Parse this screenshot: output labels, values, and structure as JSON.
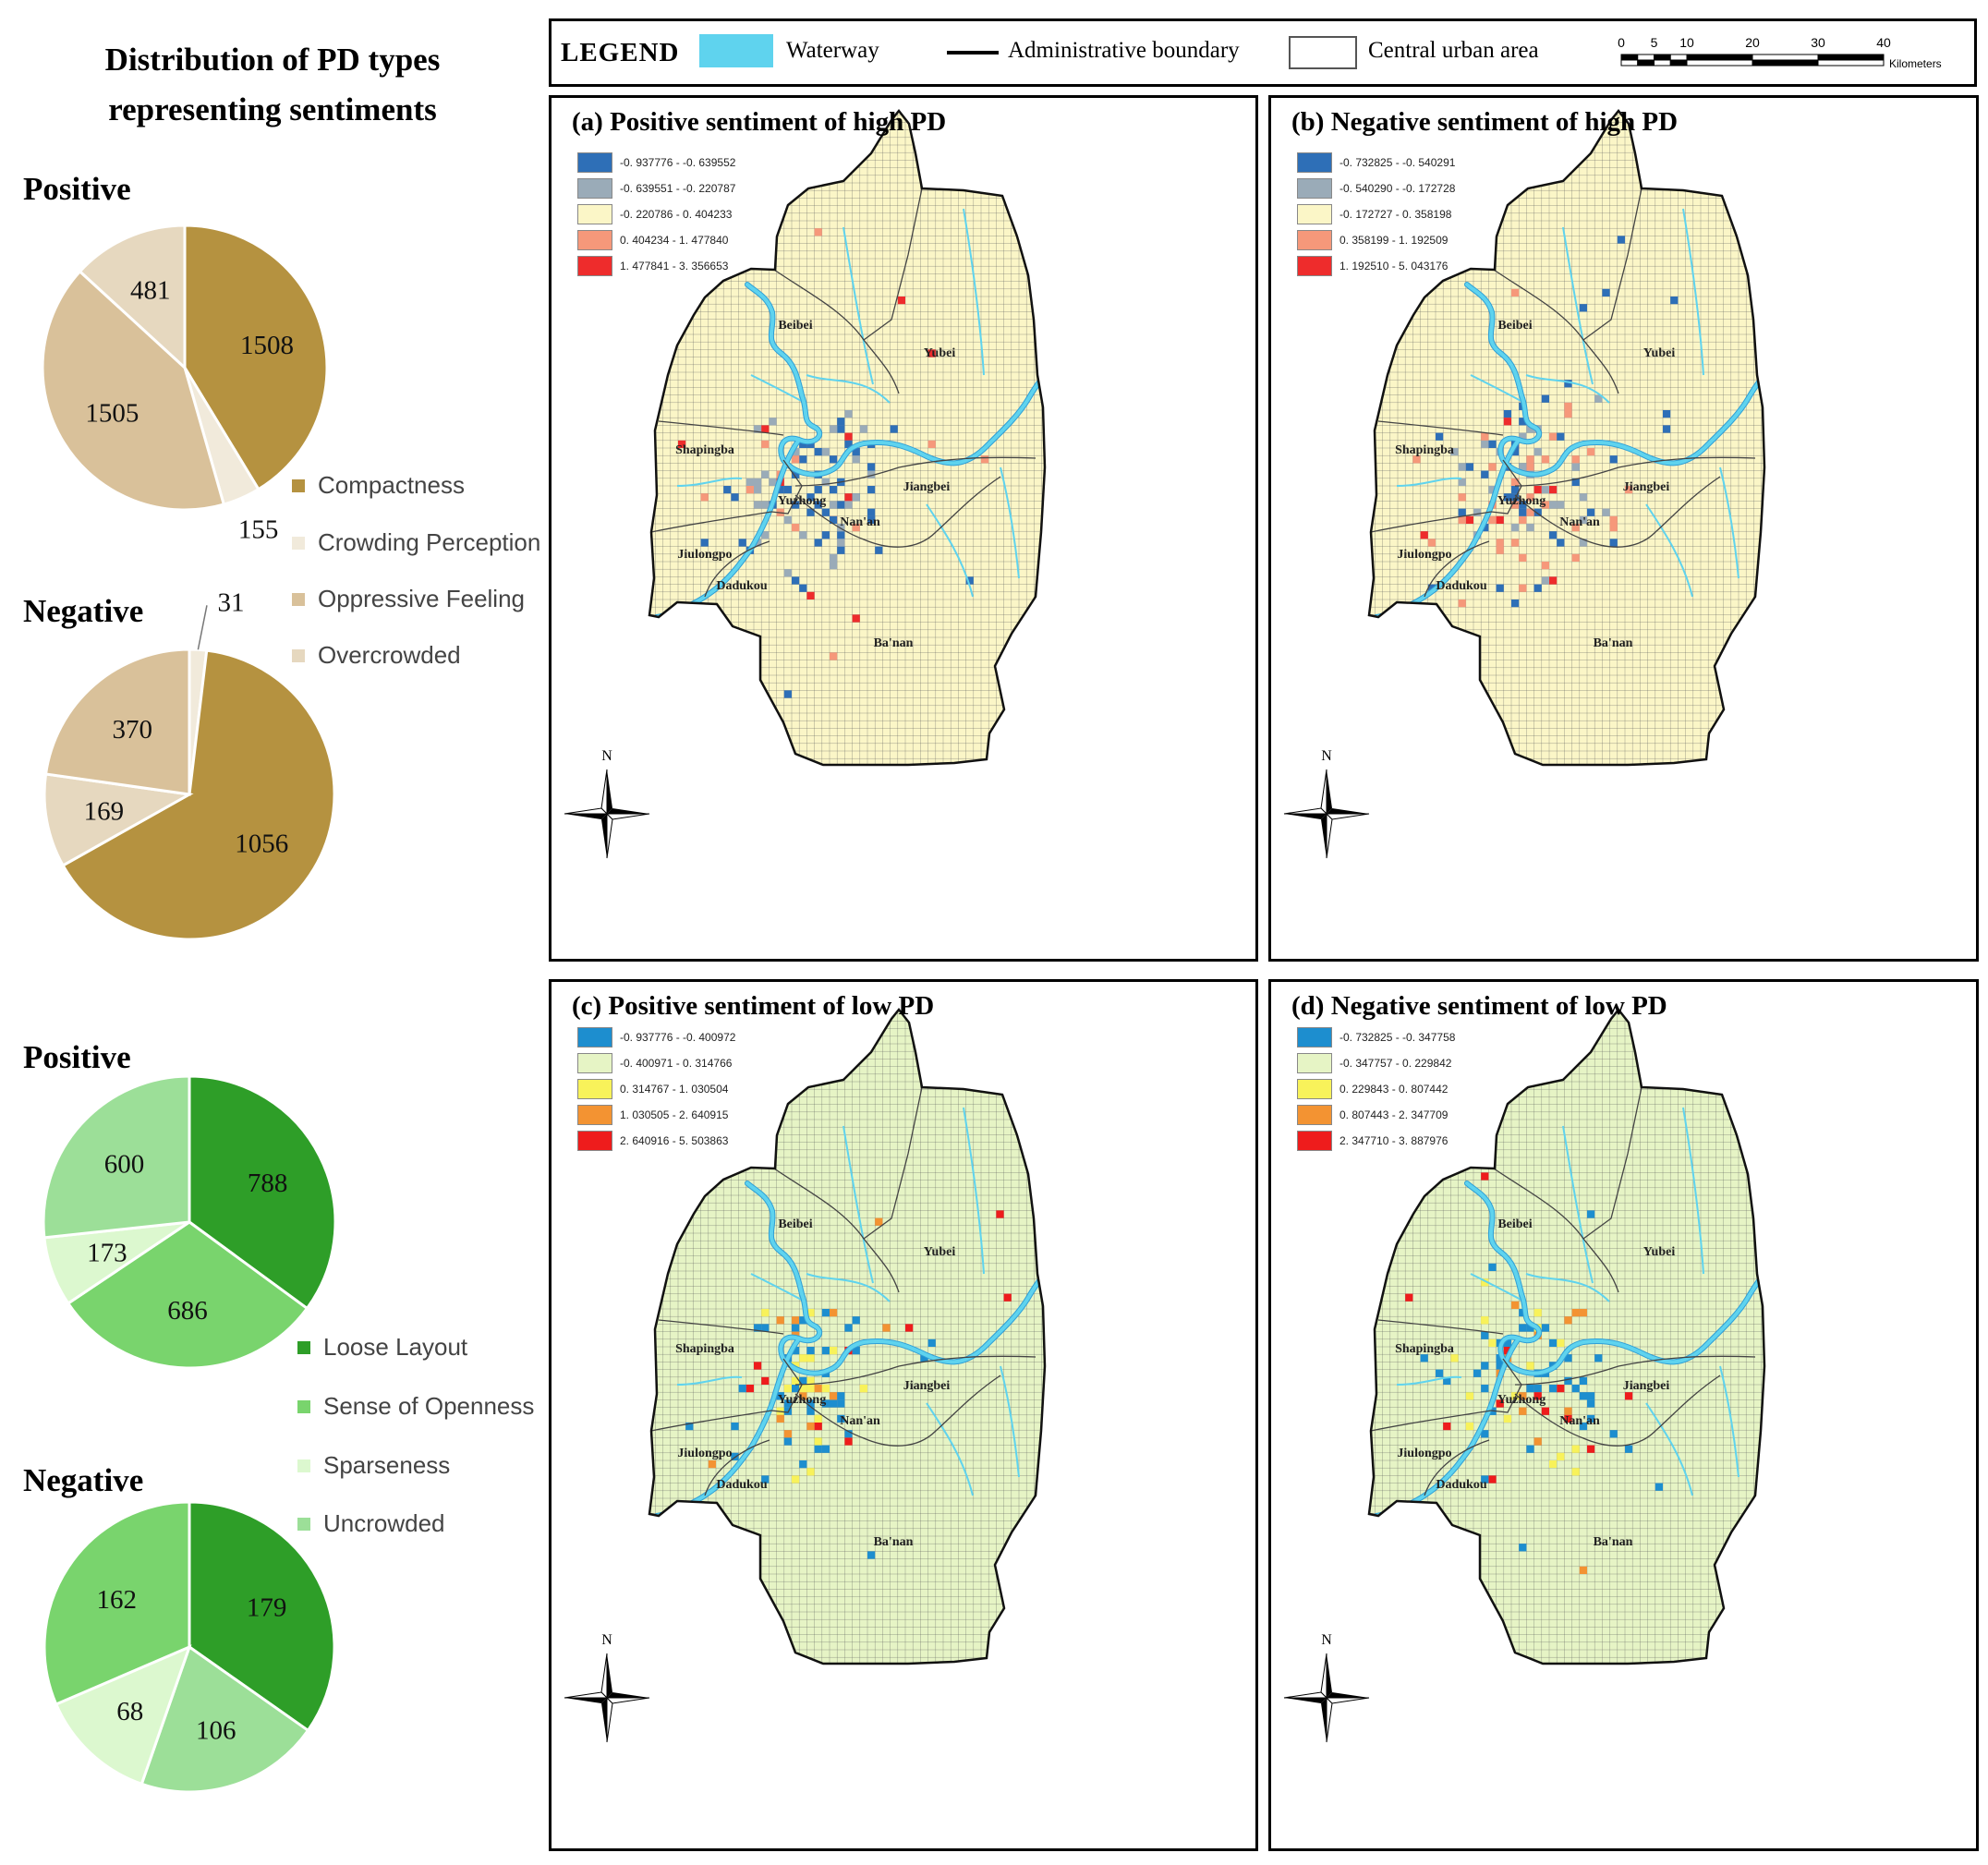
{
  "title_lines": [
    "Distribution of PD types",
    "representing sentiments"
  ],
  "colors": {
    "compactness": "#b59240",
    "crowding_perception": "#f1eadb",
    "oppressive_feeling": "#d9c19a",
    "overcrowded": "#e6d8bf",
    "loose_layout": "#2e9e28",
    "sense_of_openness": "#79d46d",
    "sparseness": "#dcf8cf",
    "uncrowded": "#9cdf98",
    "waterway": "#5fd3ee",
    "high_pd_fill": "#fbf6c7",
    "low_pd_fill": "#e6f4c5"
  },
  "high_pd_section": {
    "legend": [
      "Compactness",
      "Crowding Perception",
      "Oppressive Feeling",
      "Overcrowded"
    ],
    "legend_colors": [
      "#b59240",
      "#f1eadb",
      "#d9c19a",
      "#e6d8bf"
    ]
  },
  "low_pd_section": {
    "legend": [
      "Loose Layout",
      "Sense of Openness",
      "Sparseness",
      "Uncrowded"
    ],
    "legend_colors": [
      "#2e9e28",
      "#79d46d",
      "#dcf8cf",
      "#9cdf98"
    ]
  },
  "chart_data": [
    {
      "type": "pie",
      "title": "Positive",
      "categories": [
        "Compactness",
        "Crowding Perception",
        "Oppressive Feeling",
        "Overcrowded"
      ],
      "values": [
        1508,
        155,
        1505,
        481
      ]
    },
    {
      "type": "pie",
      "title": "Negative",
      "categories": [
        "Compactness",
        "Crowding Perception",
        "Oppressive Feeling",
        "Overcrowded"
      ],
      "values": [
        1056,
        31,
        370,
        169
      ]
    },
    {
      "type": "pie",
      "title": "Positive",
      "categories": [
        "Loose Layout",
        "Sense of Openness",
        "Sparseness",
        "Uncrowded"
      ],
      "values": [
        788,
        686,
        173,
        600
      ]
    },
    {
      "type": "pie",
      "title": "Negative",
      "categories": [
        "Loose Layout",
        "Uncrowded",
        "Sparseness",
        "Sense of Openness"
      ],
      "values": [
        179,
        106,
        68,
        162
      ]
    }
  ],
  "map_legend": {
    "title": "LEGEND",
    "items": [
      "Waterway",
      "Administrative boundary",
      "Central urban area"
    ],
    "scale_ticks": [
      "0",
      "5",
      "10",
      "20",
      "30",
      "40"
    ],
    "scale_unit": "Kilometers"
  },
  "districts": [
    "Beibei",
    "Yubei",
    "Shapingba",
    "Jiangbei",
    "Yuzhong",
    "Nan'an",
    "Jiulongpo",
    "Dadukou",
    "Ba'nan"
  ],
  "north_label": "N",
  "panels": [
    {
      "title": "(a) Positive sentiment of high PD",
      "classes": [
        "-0. 937776 - -0. 639552",
        "-0. 639551 - -0. 220787",
        "-0. 220786 - 0. 404233",
        "0. 404234 - 1. 477840",
        "1. 477841 - 3. 356653"
      ],
      "class_colors": [
        "#2e6fb7",
        "#9aabb8",
        "#fbf6c7",
        "#f6987a",
        "#ee2c2c"
      ]
    },
    {
      "title": "(b) Negative sentiment of high PD",
      "classes": [
        "-0. 732825 - -0. 540291",
        "-0. 540290 - -0. 172728",
        "-0. 172727 - 0. 358198",
        "0. 358199 - 1. 192509",
        "1. 192510 - 5. 043176"
      ],
      "class_colors": [
        "#2e6fb7",
        "#9aabb8",
        "#fbf6c7",
        "#f6987a",
        "#ee2c2c"
      ]
    },
    {
      "title": "(c) Positive sentiment of low PD",
      "classes": [
        "-0. 937776 - -0. 400972",
        "-0. 400971 - 0. 314766",
        "0. 314767 - 1. 030504",
        "1. 030505 - 2. 640915",
        "2. 640916 - 5. 503863"
      ],
      "class_colors": [
        "#1d8ecf",
        "#e6f4c5",
        "#f8f25a",
        "#f39332",
        "#ee1c1c"
      ]
    },
    {
      "title": "(d) Negative sentiment of low PD",
      "classes": [
        "-0. 732825 - -0. 347758",
        "-0. 347757 - 0. 229842",
        "0. 229843 - 0. 807442",
        "0. 807443 - 2. 347709",
        "2. 347710 - 3. 887976"
      ],
      "class_colors": [
        "#1d8ecf",
        "#e6f4c5",
        "#f8f25a",
        "#f39332",
        "#ee1c1c"
      ]
    }
  ]
}
